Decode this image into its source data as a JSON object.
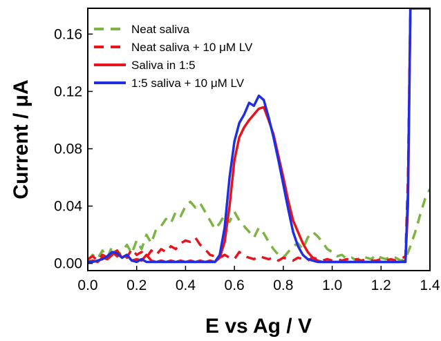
{
  "chart_data": {
    "type": "line",
    "xlabel": "E vs Ag / V",
    "ylabel": "Current / μA",
    "xlim": [
      0.0,
      1.4
    ],
    "ylim": [
      -0.005,
      0.178
    ],
    "xticks": [
      0.0,
      0.2,
      0.4,
      0.6,
      0.8,
      1.0,
      1.2,
      1.4
    ],
    "xtick_labels": [
      "0.0",
      "0.2",
      "0.4",
      "0.6",
      "0.8",
      "1.0",
      "1.2",
      "1.4"
    ],
    "yticks": [
      0.0,
      0.04,
      0.08,
      0.12,
      0.16
    ],
    "ytick_labels": [
      "0.00",
      "0.04",
      "0.08",
      "0.12",
      "0.16"
    ],
    "grid": false,
    "legend_position": "top-left",
    "series": [
      {
        "name": "Neat saliva",
        "color": "#7cb342",
        "dash": "dash",
        "x": [
          0.0,
          0.02,
          0.04,
          0.06,
          0.08,
          0.1,
          0.12,
          0.14,
          0.16,
          0.18,
          0.2,
          0.22,
          0.24,
          0.26,
          0.28,
          0.3,
          0.32,
          0.34,
          0.36,
          0.38,
          0.4,
          0.42,
          0.44,
          0.46,
          0.48,
          0.5,
          0.52,
          0.54,
          0.56,
          0.58,
          0.6,
          0.62,
          0.64,
          0.66,
          0.68,
          0.7,
          0.72,
          0.74,
          0.76,
          0.78,
          0.8,
          0.82,
          0.84,
          0.86,
          0.88,
          0.9,
          0.92,
          0.94,
          0.96,
          0.98,
          1.0,
          1.02,
          1.04,
          1.06,
          1.08,
          1.1,
          1.12,
          1.14,
          1.16,
          1.18,
          1.2,
          1.22,
          1.24,
          1.26,
          1.28,
          1.3,
          1.32,
          1.34,
          1.36,
          1.38,
          1.4
        ],
        "y": [
          0.002,
          0.006,
          0.003,
          0.009,
          0.004,
          0.012,
          0.006,
          0.008,
          0.013,
          0.007,
          0.016,
          0.01,
          0.02,
          0.014,
          0.024,
          0.026,
          0.031,
          0.028,
          0.036,
          0.033,
          0.04,
          0.043,
          0.039,
          0.042,
          0.036,
          0.03,
          0.024,
          0.028,
          0.034,
          0.029,
          0.036,
          0.03,
          0.026,
          0.022,
          0.018,
          0.025,
          0.021,
          0.015,
          0.01,
          0.006,
          0.004,
          0.008,
          0.012,
          0.014,
          0.01,
          0.018,
          0.022,
          0.019,
          0.015,
          0.01,
          0.008,
          0.005,
          0.006,
          0.003,
          0.004,
          0.002,
          0.005,
          0.004,
          0.003,
          0.006,
          0.004,
          0.003,
          0.005,
          0.004,
          0.002,
          0.003,
          0.012,
          0.022,
          0.034,
          0.045,
          0.052
        ]
      },
      {
        "name": "Neat saliva + 10 μM LV",
        "color": "#e8141c",
        "dash": "dash",
        "x": [
          0.0,
          0.02,
          0.04,
          0.06,
          0.08,
          0.1,
          0.12,
          0.14,
          0.16,
          0.18,
          0.2,
          0.22,
          0.24,
          0.26,
          0.28,
          0.3,
          0.32,
          0.34,
          0.36,
          0.38,
          0.4,
          0.42,
          0.44,
          0.46,
          0.48,
          0.5,
          0.52,
          0.54,
          0.56,
          0.58,
          0.6,
          0.62,
          0.64,
          0.66,
          0.68,
          0.7,
          0.72,
          0.74,
          0.76,
          0.78,
          0.8,
          0.82,
          0.84,
          0.86,
          0.88,
          0.9,
          0.92,
          0.94,
          0.96,
          0.98,
          1.0,
          1.02,
          1.04,
          1.06,
          1.08,
          1.1,
          1.12,
          1.14,
          1.16,
          1.18,
          1.2,
          1.22,
          1.24,
          1.26,
          1.28,
          1.3,
          1.31,
          1.32,
          1.33,
          1.34,
          1.36,
          1.38,
          1.4
        ],
        "y": [
          0.003,
          0.005,
          0.002,
          0.006,
          0.004,
          0.008,
          0.005,
          0.007,
          0.004,
          0.01,
          0.006,
          0.008,
          0.004,
          0.009,
          0.006,
          0.01,
          0.008,
          0.012,
          0.01,
          0.014,
          0.016,
          0.015,
          0.018,
          0.013,
          0.01,
          0.006,
          0.005,
          0.004,
          0.006,
          0.004,
          0.003,
          0.008,
          0.005,
          0.004,
          0.003,
          0.005,
          0.004,
          0.003,
          0.004,
          0.002,
          0.004,
          0.003,
          0.002,
          0.004,
          0.003,
          0.002,
          0.004,
          0.003,
          0.002,
          0.003,
          0.002,
          0.003,
          0.002,
          0.003,
          0.002,
          0.003,
          0.002,
          0.003,
          0.002,
          0.002,
          0.003,
          0.002,
          0.003,
          0.002,
          0.003,
          0.005,
          0.06,
          0.178,
          0.178,
          0.178,
          0.178,
          0.178,
          0.178
        ]
      },
      {
        "name": "Saliva in 1:5",
        "color": "#e8141c",
        "dash": "solid",
        "x": [
          0.0,
          0.02,
          0.04,
          0.06,
          0.08,
          0.1,
          0.12,
          0.14,
          0.16,
          0.18,
          0.2,
          0.22,
          0.24,
          0.26,
          0.28,
          0.3,
          0.32,
          0.34,
          0.36,
          0.38,
          0.4,
          0.42,
          0.44,
          0.46,
          0.48,
          0.5,
          0.52,
          0.54,
          0.56,
          0.58,
          0.6,
          0.62,
          0.64,
          0.66,
          0.68,
          0.7,
          0.72,
          0.74,
          0.76,
          0.78,
          0.8,
          0.82,
          0.84,
          0.86,
          0.88,
          0.9,
          0.92,
          0.94,
          0.96,
          0.98,
          1.0,
          1.02,
          1.04,
          1.06,
          1.08,
          1.1,
          1.12,
          1.14,
          1.16,
          1.18,
          1.2,
          1.22,
          1.24,
          1.26,
          1.28,
          1.3,
          1.31,
          1.32,
          1.33,
          1.34,
          1.36,
          1.38,
          1.4
        ],
        "y": [
          0.001,
          0.002,
          0.001,
          0.004,
          0.003,
          0.006,
          0.009,
          0.004,
          0.006,
          0.002,
          0.003,
          0.002,
          0.006,
          0.002,
          0.001,
          0.002,
          0.001,
          0.002,
          0.001,
          0.002,
          0.001,
          0.002,
          0.001,
          0.002,
          0.001,
          0.002,
          0.001,
          0.004,
          0.015,
          0.04,
          0.072,
          0.088,
          0.095,
          0.1,
          0.104,
          0.108,
          0.109,
          0.1,
          0.09,
          0.075,
          0.06,
          0.044,
          0.03,
          0.022,
          0.014,
          0.008,
          0.004,
          0.002,
          0.001,
          0.001,
          0.001,
          0.001,
          0.001,
          0.001,
          0.001,
          0.001,
          0.001,
          0.001,
          0.001,
          0.001,
          0.001,
          0.001,
          0.001,
          0.001,
          0.001,
          0.002,
          0.04,
          0.178,
          0.178,
          0.178,
          0.178,
          0.178,
          0.178
        ]
      },
      {
        "name": "1:5 saliva + 10 μM LV",
        "color": "#1f2ee0",
        "dash": "solid",
        "x": [
          0.0,
          0.02,
          0.04,
          0.06,
          0.08,
          0.1,
          0.12,
          0.14,
          0.16,
          0.18,
          0.2,
          0.22,
          0.24,
          0.26,
          0.28,
          0.3,
          0.32,
          0.34,
          0.36,
          0.38,
          0.4,
          0.42,
          0.44,
          0.46,
          0.48,
          0.5,
          0.52,
          0.54,
          0.56,
          0.58,
          0.6,
          0.62,
          0.64,
          0.66,
          0.68,
          0.7,
          0.72,
          0.74,
          0.76,
          0.78,
          0.8,
          0.82,
          0.84,
          0.86,
          0.88,
          0.9,
          0.92,
          0.94,
          0.96,
          0.98,
          1.0,
          1.02,
          1.04,
          1.06,
          1.08,
          1.1,
          1.12,
          1.14,
          1.16,
          1.18,
          1.2,
          1.22,
          1.24,
          1.26,
          1.28,
          1.3,
          1.31,
          1.32,
          1.33,
          1.34,
          1.36,
          1.38,
          1.4
        ],
        "y": [
          0.001,
          0.001,
          0.002,
          0.003,
          0.005,
          0.008,
          0.007,
          0.004,
          0.006,
          0.002,
          0.001,
          0.003,
          0.001,
          0.001,
          0.001,
          0.001,
          0.001,
          0.001,
          0.001,
          0.001,
          0.001,
          0.001,
          0.001,
          0.001,
          0.001,
          0.001,
          0.001,
          0.006,
          0.025,
          0.06,
          0.085,
          0.098,
          0.104,
          0.112,
          0.11,
          0.117,
          0.114,
          0.102,
          0.088,
          0.072,
          0.055,
          0.038,
          0.022,
          0.012,
          0.006,
          0.003,
          0.002,
          0.001,
          0.001,
          0.001,
          0.001,
          0.001,
          0.001,
          0.001,
          0.001,
          0.001,
          0.001,
          0.001,
          0.001,
          0.001,
          0.001,
          0.001,
          0.001,
          0.001,
          0.001,
          0.001,
          0.05,
          0.178,
          0.178,
          0.178,
          0.178,
          0.178,
          0.178
        ]
      }
    ]
  }
}
